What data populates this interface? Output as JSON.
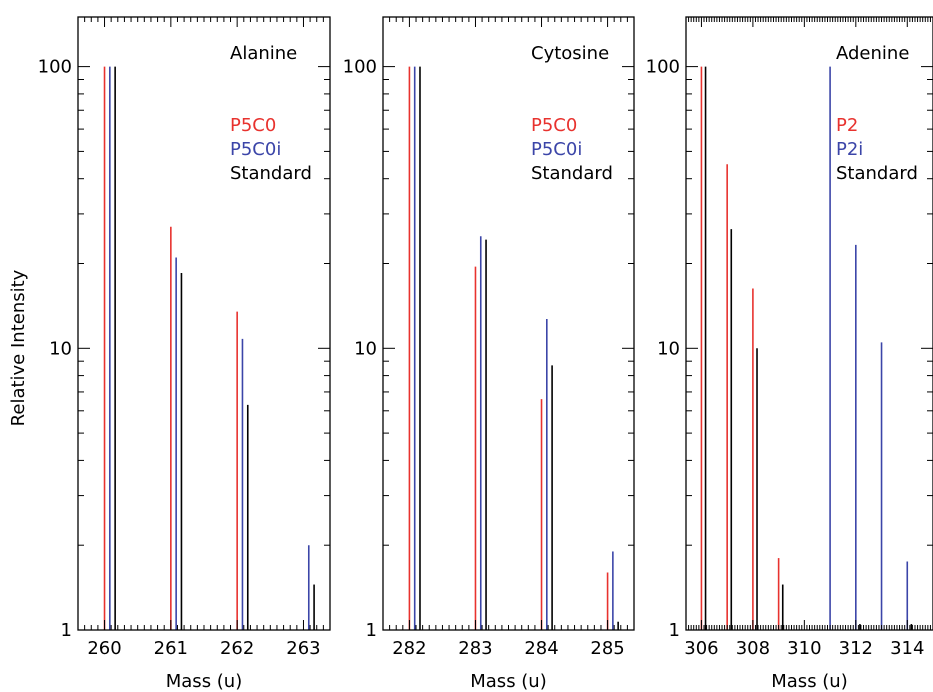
{
  "ylabel": "Relative Intensity",
  "colors": {
    "sample": "#e8322e",
    "sample_i": "#3b45a8",
    "standard": "#000000"
  },
  "chart_data": [
    {
      "type": "bar",
      "title": "Alanine",
      "xlabel": "Mass (u)",
      "ylabel": "Relative Intensity",
      "yscale": "log",
      "xlim": [
        259.6,
        263.4
      ],
      "ylim": [
        1,
        150
      ],
      "xticks": [
        260,
        261,
        262,
        263
      ],
      "yticks": [
        1,
        10,
        100
      ],
      "legend": [
        "P5C0",
        "P5C0i",
        "Standard"
      ],
      "series": [
        {
          "name": "P5C0",
          "color": "#e8322e",
          "offset": 0.0,
          "x": [
            260,
            261,
            262
          ],
          "values": [
            100,
            27,
            13.5
          ]
        },
        {
          "name": "P5C0i",
          "color": "#3b45a8",
          "offset": 0.08,
          "x": [
            260,
            261,
            262,
            263
          ],
          "values": [
            100,
            21,
            10.8,
            2.0
          ]
        },
        {
          "name": "Standard",
          "color": "#000000",
          "offset": 0.16,
          "x": [
            260,
            261,
            262,
            263
          ],
          "values": [
            100,
            18.5,
            6.3,
            1.45
          ]
        }
      ]
    },
    {
      "type": "bar",
      "title": "Cytosine",
      "xlabel": "Mass (u)",
      "ylabel": "",
      "yscale": "log",
      "xlim": [
        281.6,
        285.4
      ],
      "ylim": [
        1,
        150
      ],
      "xticks": [
        282,
        283,
        284,
        285
      ],
      "yticks": [
        1,
        10,
        100
      ],
      "legend": [
        "P5C0",
        "P5C0i",
        "Standard"
      ],
      "series": [
        {
          "name": "P5C0",
          "color": "#e8322e",
          "offset": 0.0,
          "x": [
            282,
            283,
            284,
            285
          ],
          "values": [
            100,
            19.5,
            6.6,
            1.6
          ]
        },
        {
          "name": "P5C0i",
          "color": "#3b45a8",
          "offset": 0.08,
          "x": [
            282,
            283,
            284,
            285
          ],
          "values": [
            100,
            25,
            12.7,
            1.9
          ]
        },
        {
          "name": "Standard",
          "color": "#000000",
          "offset": 0.16,
          "x": [
            282,
            283,
            284,
            285
          ],
          "values": [
            100,
            24.3,
            8.7,
            1.07
          ]
        }
      ]
    },
    {
      "type": "bar",
      "title": "Adenine",
      "xlabel": "Mass (u)",
      "ylabel": "",
      "yscale": "log",
      "xlim": [
        305.4,
        315
      ],
      "ylim": [
        1,
        150
      ],
      "xticks": [
        306,
        308,
        310,
        312,
        314
      ],
      "yticks": [
        1,
        10,
        100
      ],
      "legend": [
        "P2",
        "P2i",
        "Standard"
      ],
      "series": [
        {
          "name": "P2",
          "color": "#e8322e",
          "offset": 0.0,
          "x": [
            306,
            307,
            308,
            309
          ],
          "values": [
            100,
            45,
            16.3,
            1.8
          ]
        },
        {
          "name": "P2i",
          "color": "#3b45a8",
          "offset": 0.0,
          "x": [
            311,
            312,
            313,
            314
          ],
          "values": [
            100,
            23.3,
            10.5,
            1.75
          ]
        },
        {
          "name": "Standard",
          "color": "#000000",
          "offset": 0.16,
          "x": [
            306,
            307,
            308,
            309,
            310,
            312,
            313,
            314
          ],
          "values": [
            100,
            26.5,
            10,
            1.45,
            1.0,
            1.05,
            1.0,
            1.05
          ]
        }
      ]
    }
  ]
}
